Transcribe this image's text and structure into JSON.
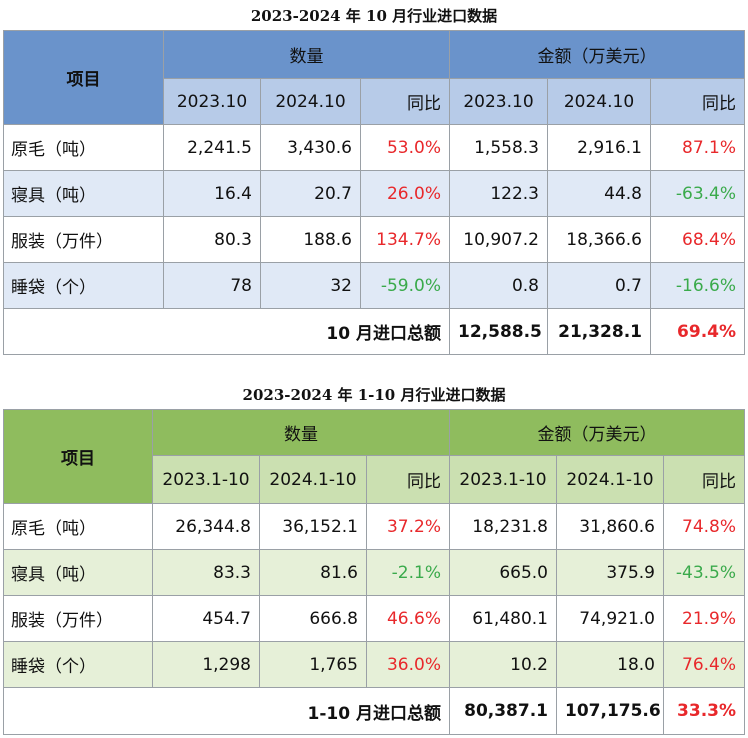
{
  "table1": {
    "title": "2023-2024 年 10 月行业进口数据",
    "item_header": "项目",
    "qty_header": "数量",
    "amt_header": "金额（万美元）",
    "col_a": "2023.10",
    "col_b": "2024.10",
    "yoy": "同比",
    "rows": [
      {
        "label": "原毛（吨）",
        "qa": "2,241.5",
        "qb": "3,430.6",
        "qy": "53.0%",
        "aa": "1,558.3",
        "ab": "2,916.1",
        "ay": "87.1%"
      },
      {
        "label": "寝具（吨）",
        "qa": "16.4",
        "qb": "20.7",
        "qy": "26.0%",
        "aa": "122.3",
        "ab": "44.8",
        "ay": "-63.4%"
      },
      {
        "label": "服装（万件）",
        "qa": "80.3",
        "qb": "188.6",
        "qy": "134.7%",
        "aa": "10,907.2",
        "ab": "18,366.6",
        "ay": "68.4%"
      },
      {
        "label": "睡袋（个）",
        "qa": "78",
        "qb": "32",
        "qy": "-59.0%",
        "aa": "0.8",
        "ab": "0.7",
        "ay": "-16.6%"
      }
    ],
    "total_label": "10 月进口总额",
    "total_a": "12,588.5",
    "total_b": "21,328.1",
    "total_yoy": "69.4%"
  },
  "table2": {
    "title": "2023-2024 年 1-10 月行业进口数据",
    "item_header": "项目",
    "qty_header": "数量",
    "amt_header": "金额（万美元）",
    "col_a": "2023.1-10",
    "col_b": "2024.1-10",
    "yoy": "同比",
    "rows": [
      {
        "label": "原毛（吨）",
        "qa": "26,344.8",
        "qb": "36,152.1",
        "qy": "37.2%",
        "aa": "18,231.8",
        "ab": "31,860.6",
        "ay": "74.8%"
      },
      {
        "label": "寝具（吨）",
        "qa": "83.3",
        "qb": "81.6",
        "qy": "-2.1%",
        "aa": "665.0",
        "ab": "375.9",
        "ay": "-43.5%"
      },
      {
        "label": "服装（万件）",
        "qa": "454.7",
        "qb": "666.8",
        "qy": "46.6%",
        "aa": "61,480.1",
        "ab": "74,921.0",
        "ay": "21.9%"
      },
      {
        "label": "睡袋（个）",
        "qa": "1,298",
        "qb": "1,765",
        "qy": "36.0%",
        "aa": "10.2",
        "ab": "18.0",
        "ay": "76.4%"
      }
    ],
    "total_label": "1-10 月进口总额",
    "total_a": "80,387.1",
    "total_b": "107,175.6",
    "total_yoy": "33.3%"
  }
}
